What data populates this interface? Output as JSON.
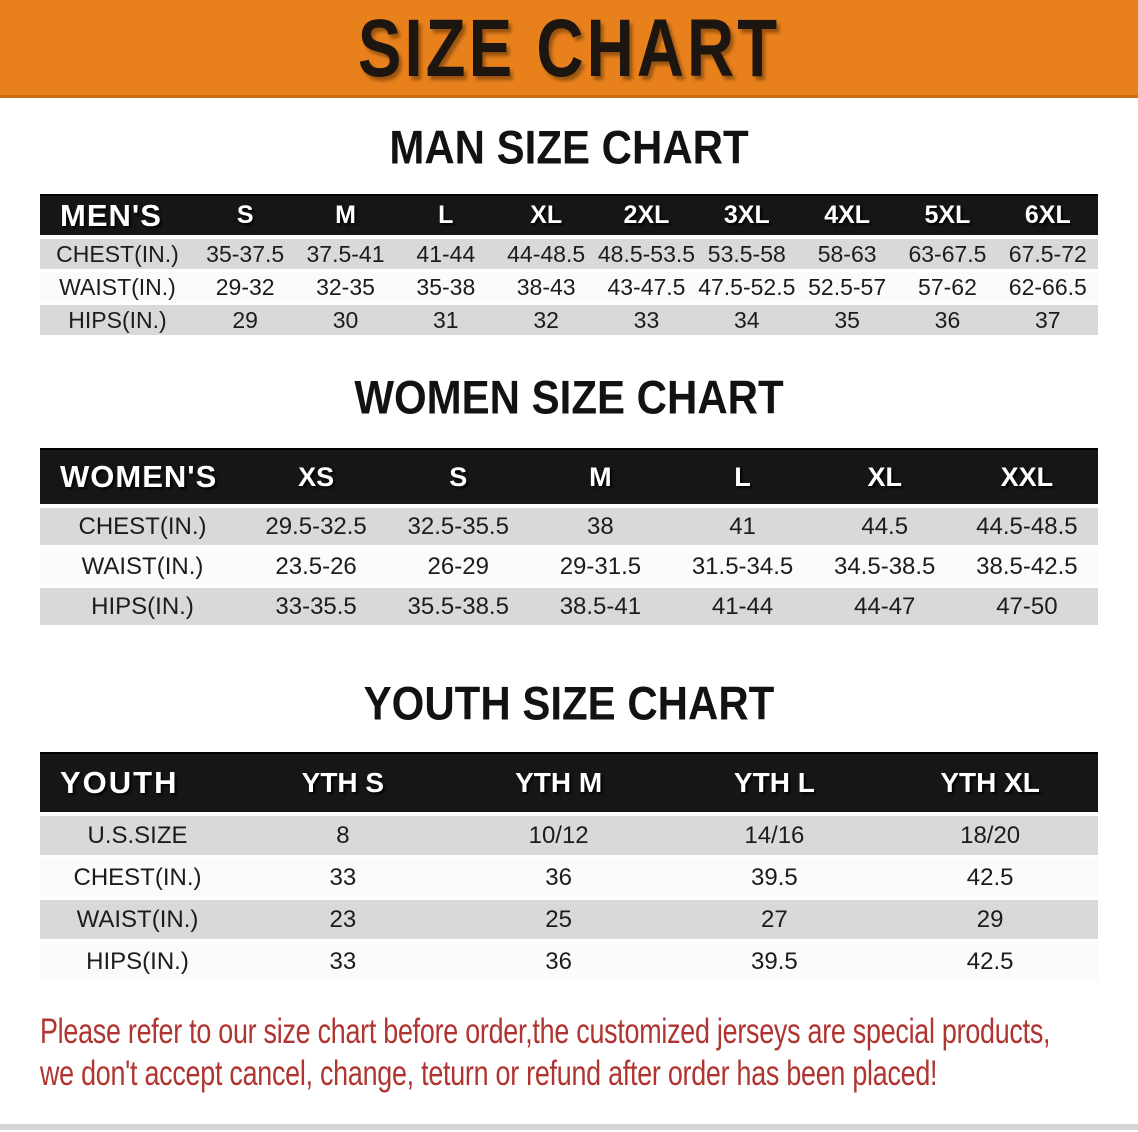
{
  "banner": {
    "title": "SIZE CHART",
    "bg_color": "#e8811c"
  },
  "sections": [
    {
      "heading": "MAN SIZE CHART",
      "table": {
        "label": "MEN'S",
        "columns": [
          "S",
          "M",
          "L",
          "XL",
          "2XL",
          "3XL",
          "4XL",
          "5XL",
          "6XL"
        ],
        "rows": [
          {
            "label": "CHEST(IN.)",
            "values": [
              "35-37.5",
              "37.5-41",
              "41-44",
              "44-48.5",
              "48.5-53.5",
              "53.5-58",
              "58-63",
              "63-67.5",
              "67.5-72"
            ]
          },
          {
            "label": "WAIST(IN.)",
            "values": [
              "29-32",
              "32-35",
              "35-38",
              "38-43",
              "43-47.5",
              "47.5-52.5",
              "52.5-57",
              "57-62",
              "62-66.5"
            ]
          },
          {
            "label": "HIPS(IN.)",
            "values": [
              "29",
              "30",
              "31",
              "32",
              "33",
              "34",
              "35",
              "36",
              "37"
            ]
          }
        ]
      }
    },
    {
      "heading": "WOMEN SIZE CHART",
      "table": {
        "label": "WOMEN'S",
        "columns": [
          "XS",
          "S",
          "M",
          "L",
          "XL",
          "XXL"
        ],
        "rows": [
          {
            "label": "CHEST(IN.)",
            "values": [
              "29.5-32.5",
              "32.5-35.5",
              "38",
              "41",
              "44.5",
              "44.5-48.5"
            ]
          },
          {
            "label": "WAIST(IN.)",
            "values": [
              "23.5-26",
              "26-29",
              "29-31.5",
              "31.5-34.5",
              "34.5-38.5",
              "38.5-42.5"
            ]
          },
          {
            "label": "HIPS(IN.)",
            "values": [
              "33-35.5",
              "35.5-38.5",
              "38.5-41",
              "41-44",
              "44-47",
              "47-50"
            ]
          }
        ]
      }
    },
    {
      "heading": "YOUTH SIZE CHART",
      "table": {
        "label": "YOUTH",
        "columns": [
          "YTH S",
          "YTH M",
          "YTH L",
          "YTH XL"
        ],
        "rows": [
          {
            "label": "U.S.SIZE",
            "values": [
              "8",
              "10/12",
              "14/16",
              "18/20"
            ]
          },
          {
            "label": "CHEST(IN.)",
            "values": [
              "33",
              "36",
              "39.5",
              "42.5"
            ]
          },
          {
            "label": "WAIST(IN.)",
            "values": [
              "23",
              "25",
              "27",
              "29"
            ]
          },
          {
            "label": "HIPS(IN.)",
            "values": [
              "33",
              "36",
              "39.5",
              "42.5"
            ]
          }
        ]
      }
    }
  ],
  "disclaimer": {
    "color": "#b03430",
    "lines": [
      "Please refer to our size chart before order,the customized jerseys are special products,",
      "we don't accept cancel, change, teturn or refund after order has been placed!"
    ]
  }
}
